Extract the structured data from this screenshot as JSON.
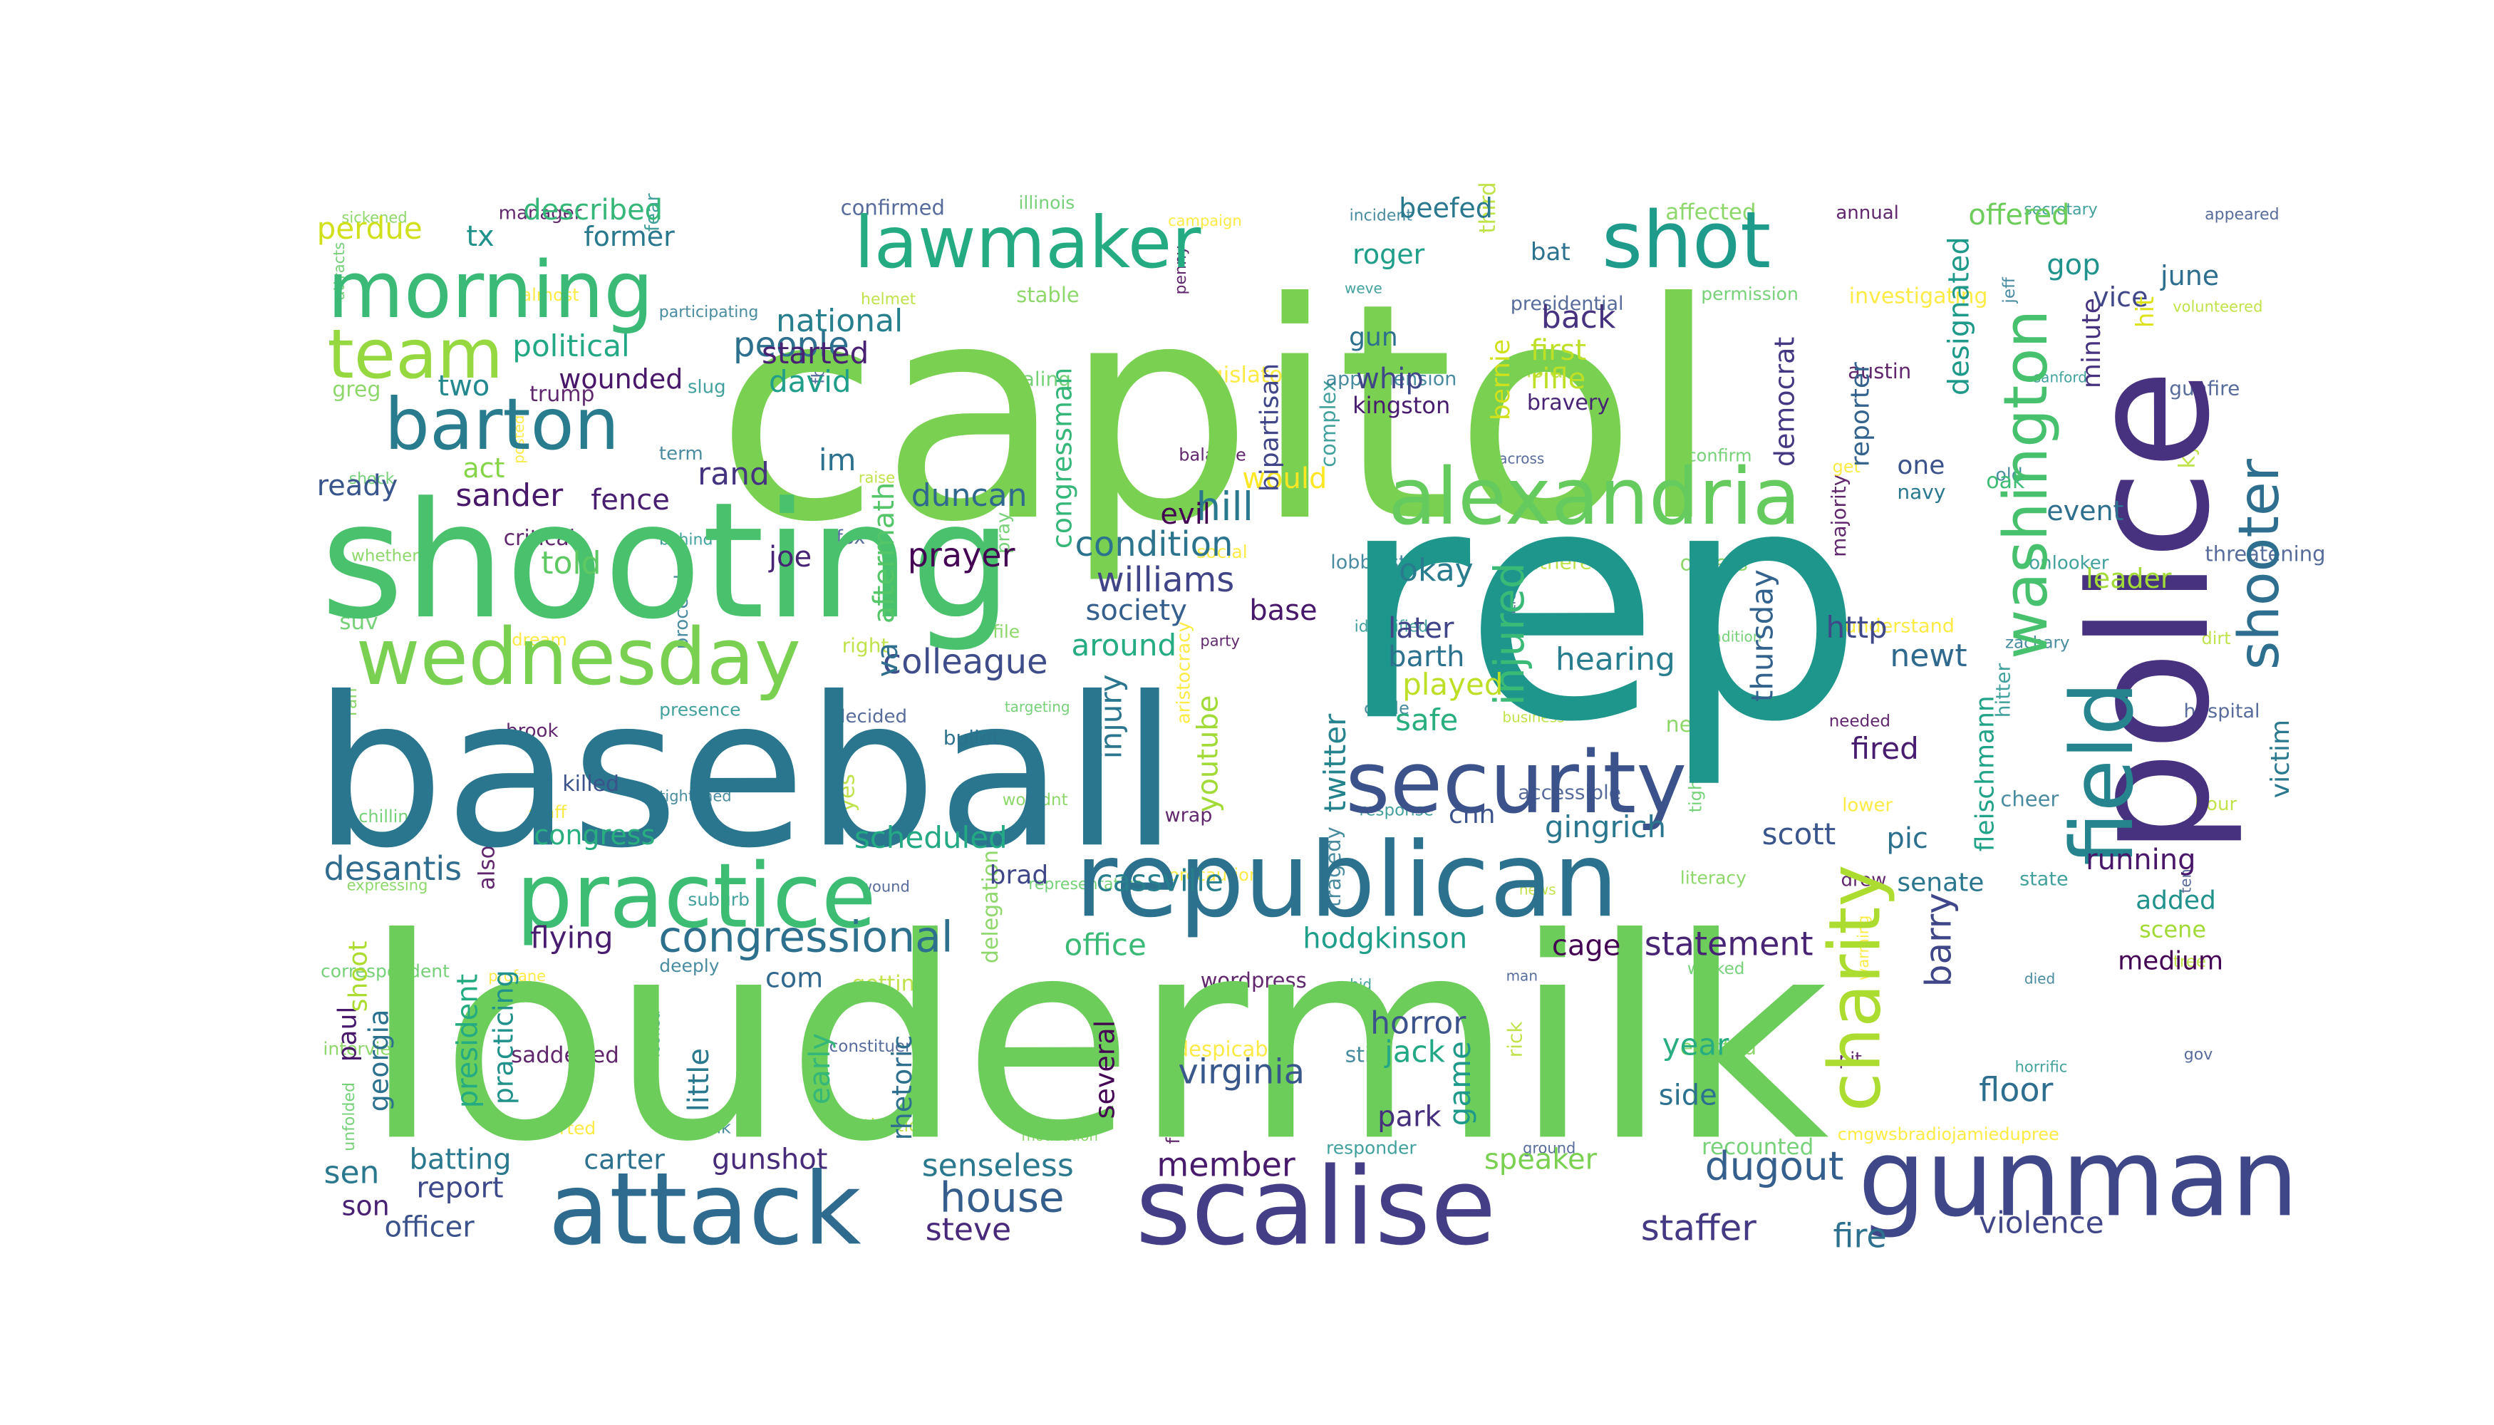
{
  "palette": [
    "#440154",
    "#3b528b",
    "#21918c",
    "#5ec962",
    "#fde725"
  ],
  "words": [
    {
      "text": "capitol",
      "color": "#7ad151"
    },
    {
      "text": "rep",
      "color": "#1f968b"
    },
    {
      "text": "loudermilk",
      "color": "#6ccd5a"
    },
    {
      "text": "baseball",
      "color": "#2a768e"
    },
    {
      "text": "shooting",
      "color": "#4ac16d"
    },
    {
      "text": "police",
      "color": "#46327e"
    },
    {
      "text": "scalise",
      "color": "#433e85"
    },
    {
      "text": "republican",
      "color": "#2c718e"
    },
    {
      "text": "gunman",
      "color": "#3f4788"
    },
    {
      "text": "attack",
      "color": "#2f6b8e"
    },
    {
      "text": "practice",
      "color": "#3dbc74"
    },
    {
      "text": "alexandria",
      "color": "#65cb5e"
    },
    {
      "text": "security",
      "color": "#3b528b"
    },
    {
      "text": "field",
      "color": "#25848e"
    },
    {
      "text": "morning",
      "color": "#3aba76"
    },
    {
      "text": "lawmaker",
      "color": "#25ab82"
    },
    {
      "text": "shot",
      "color": "#1e9b8a"
    },
    {
      "text": "wednesday",
      "color": "#7ad151"
    },
    {
      "text": "washington",
      "color": "#48c16e"
    },
    {
      "text": "barton",
      "color": "#287c8e"
    },
    {
      "text": "team",
      "color": "#95d840"
    },
    {
      "text": "shooter",
      "color": "#2e6e8e"
    },
    {
      "text": "charity",
      "color": "#addc30"
    },
    {
      "text": "congressional",
      "color": "#2d708e"
    },
    {
      "text": "dugout",
      "color": "#355f8d"
    },
    {
      "text": "staffer",
      "color": "#443983"
    },
    {
      "text": "house",
      "color": "#355e8d"
    },
    {
      "text": "virginia",
      "color": "#38588c"
    },
    {
      "text": "member",
      "color": "#481a6c"
    },
    {
      "text": "injured",
      "color": "#3aba76"
    },
    {
      "text": "hill",
      "color": "#2a788e"
    },
    {
      "text": "condition",
      "color": "#2c738e"
    },
    {
      "text": "williams",
      "color": "#414487"
    },
    {
      "text": "colleague",
      "color": "#3e4c8a"
    },
    {
      "text": "people",
      "color": "#2d708e"
    },
    {
      "text": "prayer",
      "color": "#440154"
    },
    {
      "text": "duncan",
      "color": "#31688e"
    },
    {
      "text": "david",
      "color": "#1f9e89"
    },
    {
      "text": "rand",
      "color": "#453581"
    },
    {
      "text": "sander",
      "color": "#48186a"
    },
    {
      "text": "joe",
      "color": "#482475"
    },
    {
      "text": "told",
      "color": "#5ec962"
    },
    {
      "text": "ready",
      "color": "#39568c"
    },
    {
      "text": "fence",
      "color": "#481f70"
    },
    {
      "text": "act",
      "color": "#86d549"
    },
    {
      "text": "im",
      "color": "#2c728e"
    },
    {
      "text": "political",
      "color": "#22a884"
    },
    {
      "text": "two",
      "color": "#23898e"
    },
    {
      "text": "wounded",
      "color": "#481769"
    },
    {
      "text": "former",
      "color": "#2a788e"
    },
    {
      "text": "described",
      "color": "#35b779"
    },
    {
      "text": "tx",
      "color": "#21918c"
    },
    {
      "text": "perdue",
      "color": "#d0e11c"
    },
    {
      "text": "national",
      "color": "#277f8e"
    },
    {
      "text": "started",
      "color": "#482173"
    },
    {
      "text": "congressman",
      "color": "#35b779"
    },
    {
      "text": "aftermath",
      "color": "#54c568"
    },
    {
      "text": "va",
      "color": "#2e6f8e"
    },
    {
      "text": "hearing",
      "color": "#287d8e"
    },
    {
      "text": "newt",
      "color": "#30698e"
    },
    {
      "text": "thursday",
      "color": "#33628d"
    },
    {
      "text": "http",
      "color": "#3f4889"
    },
    {
      "text": "twitter",
      "color": "#25838e"
    },
    {
      "text": "played",
      "color": "#bddf26"
    },
    {
      "text": "safe",
      "color": "#29af7f"
    },
    {
      "text": "later",
      "color": "#414487"
    },
    {
      "text": "barth",
      "color": "#2c728e"
    },
    {
      "text": "okay",
      "color": "#287c8e"
    },
    {
      "text": "injury",
      "color": "#2a768e"
    },
    {
      "text": "youtube",
      "color": "#a2da37"
    },
    {
      "text": "around",
      "color": "#25ac82"
    },
    {
      "text": "society",
      "color": "#355f8d"
    },
    {
      "text": "base",
      "color": "#48186a"
    },
    {
      "text": "evil",
      "color": "#440154"
    },
    {
      "text": "would",
      "color": "#fde725"
    },
    {
      "text": "bipartisan",
      "color": "#404688"
    },
    {
      "text": "democrat",
      "color": "#453781"
    },
    {
      "text": "reporter",
      "color": "#33638d"
    },
    {
      "text": "designated",
      "color": "#1f9a8a"
    },
    {
      "text": "minute",
      "color": "#46327e"
    },
    {
      "text": "gop",
      "color": "#20938c"
    },
    {
      "text": "offered",
      "color": "#6ccd5a"
    },
    {
      "text": "june",
      "color": "#2e6e8e"
    },
    {
      "text": "vice",
      "color": "#3f4788"
    },
    {
      "text": "hit",
      "color": "#dde318"
    },
    {
      "text": "event",
      "color": "#2e6f8e"
    },
    {
      "text": "leader",
      "color": "#a2da37"
    },
    {
      "text": "one",
      "color": "#3b528b"
    },
    {
      "text": "navy",
      "color": "#2a788e"
    },
    {
      "text": "oak",
      "color": "#3dbc74"
    },
    {
      "text": "fired",
      "color": "#481c6e"
    },
    {
      "text": "fleischmann",
      "color": "#20a386"
    },
    {
      "text": "pic",
      "color": "#2d708e"
    },
    {
      "text": "scott",
      "color": "#39558c"
    },
    {
      "text": "senate",
      "color": "#2a768e"
    },
    {
      "text": "running",
      "color": "#481769"
    },
    {
      "text": "barry",
      "color": "#3f4788"
    },
    {
      "text": "gingrich",
      "color": "#2a768e"
    },
    {
      "text": "cassville",
      "color": "#277f8e"
    },
    {
      "text": "scheduled",
      "color": "#23a983"
    },
    {
      "text": "congress",
      "color": "#29af7f"
    },
    {
      "text": "desantis",
      "color": "#2f6c8e"
    },
    {
      "text": "flying",
      "color": "#481c6e"
    },
    {
      "text": "brad",
      "color": "#3f4788"
    },
    {
      "text": "office",
      "color": "#3aba76"
    },
    {
      "text": "com",
      "color": "#31688e"
    },
    {
      "text": "hodgkinson",
      "color": "#1f9e89"
    },
    {
      "text": "cage",
      "color": "#440154"
    },
    {
      "text": "statement",
      "color": "#482475"
    },
    {
      "text": "horror",
      "color": "#3b528b"
    },
    {
      "text": "jack",
      "color": "#22a884"
    },
    {
      "text": "park",
      "color": "#46307e"
    },
    {
      "text": "speaker",
      "color": "#7ad151"
    },
    {
      "text": "year",
      "color": "#27ad81"
    },
    {
      "text": "side",
      "color": "#2c728e"
    },
    {
      "text": "floor",
      "color": "#2e6e8e"
    },
    {
      "text": "fire",
      "color": "#2d718e"
    },
    {
      "text": "violence",
      "color": "#404688"
    },
    {
      "text": "game",
      "color": "#1f9a8a"
    },
    {
      "text": "cnn",
      "color": "#3b528b"
    },
    {
      "text": "senseless",
      "color": "#2a788e"
    },
    {
      "text": "steve",
      "color": "#482878"
    },
    {
      "text": "batting",
      "color": "#2a788e"
    },
    {
      "text": "carter",
      "color": "#2c728e"
    },
    {
      "text": "gunshot",
      "color": "#472c7a"
    },
    {
      "text": "report",
      "color": "#3e4989"
    },
    {
      "text": "officer",
      "color": "#3b528b"
    },
    {
      "text": "sen",
      "color": "#2a788e"
    },
    {
      "text": "son",
      "color": "#482173"
    },
    {
      "text": "georgia",
      "color": "#2c728e"
    },
    {
      "text": "president",
      "color": "#25ab82"
    },
    {
      "text": "practicing",
      "color": "#21918c"
    },
    {
      "text": "paul",
      "color": "#48186a"
    },
    {
      "text": "shoot",
      "color": "#addc30"
    },
    {
      "text": "rhetoric",
      "color": "#2e6f8e"
    },
    {
      "text": "early",
      "color": "#35b779"
    },
    {
      "text": "little",
      "color": "#2a788e"
    },
    {
      "text": "several",
      "color": "#440154"
    },
    {
      "text": "added",
      "color": "#21918c"
    },
    {
      "text": "scene",
      "color": "#a2da37"
    },
    {
      "text": "medium",
      "color": "#440154"
    },
    {
      "text": "victim",
      "color": "#2a788e"
    },
    {
      "text": "kingston",
      "color": "#481c6e"
    },
    {
      "text": "bernie",
      "color": "#d0e11c"
    },
    {
      "text": "whip",
      "color": "#3f4788"
    },
    {
      "text": "gun",
      "color": "#2d708e"
    },
    {
      "text": "roger",
      "color": "#1f9e89"
    },
    {
      "text": "beefed",
      "color": "#2a788e"
    },
    {
      "text": "bat",
      "color": "#2c728e"
    },
    {
      "text": "back",
      "color": "#46327e"
    },
    {
      "text": "first",
      "color": "#bddf26"
    },
    {
      "text": "rifle",
      "color": "#bddf26"
    },
    {
      "text": "bravery",
      "color": "#482475"
    },
    {
      "text": "killed",
      "color": "#3b528b"
    },
    {
      "text": "bullet",
      "color": "#2c728e"
    }
  ],
  "small_words": [
    "sickened",
    "manager",
    "fear",
    "confirmed",
    "illinois",
    "campaign",
    "incident",
    "third",
    "affected",
    "annual",
    "secretary",
    "appeared",
    "attracts",
    "almost",
    "participating",
    "helmet",
    "stable",
    "penny",
    "weve",
    "presidential",
    "permission",
    "investigating",
    "jeff",
    "volunteered",
    "greg",
    "trump",
    "slug",
    "fbi",
    "sealing",
    "legislator",
    "apprehension",
    "insider",
    "hear",
    "austin",
    "sanford",
    "gunfire",
    "shock",
    "posted",
    "term",
    "raise",
    "ga",
    "balance",
    "complex",
    "across",
    "confirm",
    "get",
    "old",
    "ky",
    "whether",
    "critical",
    "behind",
    "fox",
    "pray",
    "social",
    "lobbyist",
    "gathered",
    "others",
    "majority",
    "onlooker",
    "threatening",
    "suv",
    "dream",
    "proceeds",
    "right",
    "file",
    "party",
    "identified",
    "politicized",
    "tradition",
    "understand",
    "zachary",
    "dirt",
    "ran",
    "brook",
    "presence",
    "decided",
    "targeting",
    "aristocracy",
    "circle",
    "business",
    "need",
    "needed",
    "hitter",
    "hospital",
    "chilling",
    "staff",
    "tightened",
    "yes",
    "wouldnt",
    "wrap",
    "response",
    "accessible",
    "tighten",
    "lower",
    "cheer",
    "hour",
    "expressing",
    "also",
    "suburb",
    "wound",
    "representative",
    "precaution",
    "tragedy",
    "news",
    "literacy",
    "drew",
    "state",
    "ten",
    "correspondent",
    "profane",
    "deeply",
    "getting",
    "delegation",
    "wordpress",
    "hid",
    "man",
    "walked",
    "warming",
    "died",
    "tree",
    "interview",
    "saddened",
    "looked",
    "constituent",
    "home",
    "despicable",
    "still",
    "rick",
    "elected",
    "pit",
    "horrific",
    "gov",
    "unfolded",
    "reported",
    "think",
    "motivation",
    "motivation",
    "frightening",
    "responder",
    "ground",
    "recounted",
    "cmgwsbradiojamiedupree"
  ]
}
